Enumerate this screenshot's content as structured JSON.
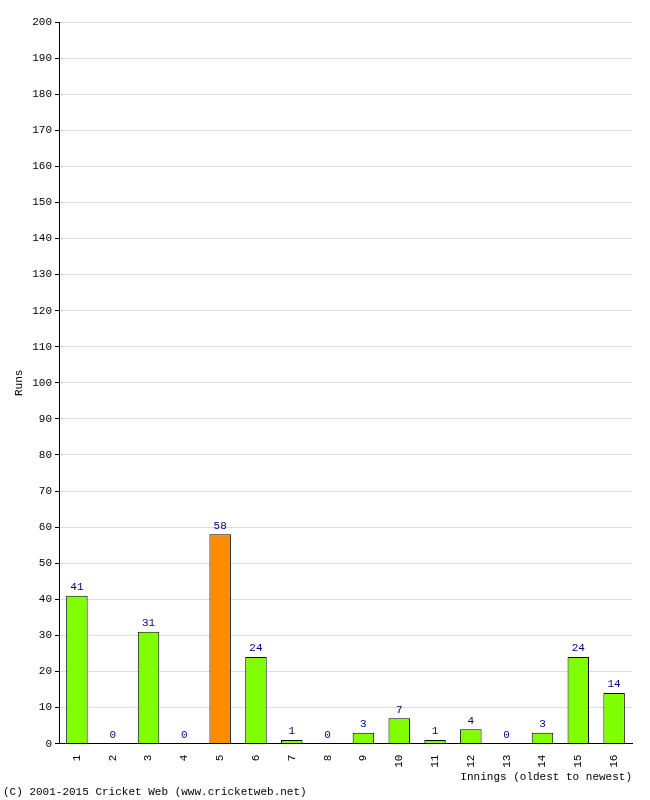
{
  "chart_data": {
    "type": "bar",
    "categories": [
      "1",
      "2",
      "3",
      "4",
      "5",
      "6",
      "7",
      "8",
      "9",
      "10",
      "11",
      "12",
      "13",
      "14",
      "15",
      "16"
    ],
    "values": [
      41,
      0,
      31,
      0,
      58,
      24,
      1,
      0,
      3,
      7,
      1,
      4,
      0,
      3,
      24,
      14
    ],
    "colors": [
      "#80ff00",
      "#80ff00",
      "#80ff00",
      "#80ff00",
      "#ff8c00",
      "#80ff00",
      "#80ff00",
      "#80ff00",
      "#80ff00",
      "#80ff00",
      "#80ff00",
      "#80ff00",
      "#80ff00",
      "#80ff00",
      "#80ff00",
      "#80ff00"
    ],
    "x_label": "Innings (oldest to newest)",
    "y_label": "Runs",
    "annotations": [
      "(C) 2001-2015 Cricket Web (www.cricketweb.net)"
    ],
    "ylim": [
      0,
      200
    ],
    "yticks": [
      0,
      10,
      20,
      30,
      40,
      50,
      60,
      70,
      80,
      90,
      100,
      110,
      120,
      130,
      140,
      150,
      160,
      170,
      180,
      190,
      200
    ],
    "grid": true,
    "data_labels": true
  }
}
